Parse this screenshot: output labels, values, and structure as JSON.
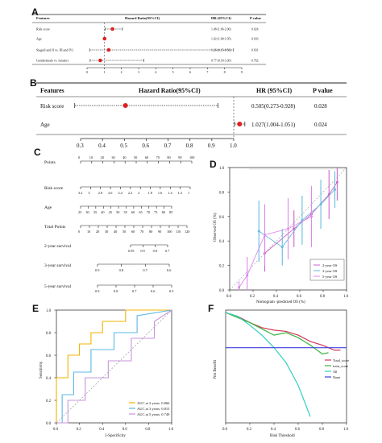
{
  "panels": {
    "A": {
      "label": "A",
      "headers": {
        "features": "Features",
        "hr": "Hazard Ratio(95%CI)",
        "hrci": "HR (95%CI)",
        "p": "P value"
      },
      "rows": [
        {
          "name": "Risk score",
          "hr": 1.48,
          "lo": 1.06,
          "hi": 2.06,
          "hr_text": "1.48 (1.06-2.06)",
          "p": "0.024"
        },
        {
          "name": "Age",
          "hr": 1.02,
          "lo": 1.0,
          "hi": 1.05,
          "hr_text": "1.02 (1.00-1.05)",
          "p": "0.033"
        },
        {
          "name": "Stage(I and II vs. III and IV)",
          "hr": 1.26,
          "lo": 0.15,
          "hi": 8.5,
          "hr_text": "1.26 (0.15-8.50)",
          "p": "0.831"
        },
        {
          "name": "Gender(male vs. female)",
          "hr": 0.77,
          "lo": 0.18,
          "hi": 3.3,
          "hr_text": "0.77 (0.18-3.30)",
          "p": "0.762"
        }
      ],
      "axis_ticks": [
        "0",
        "1",
        "2",
        "3",
        "4",
        "5",
        "6",
        "7",
        "8",
        "9"
      ]
    },
    "B": {
      "label": "B",
      "headers": {
        "features": "Features",
        "hr": "Hazard Ratio(95%CI)",
        "hrci": "HR (95%CI)",
        "p": "P value"
      },
      "rows": [
        {
          "name": "Risk score",
          "hr": 0.505,
          "lo": 0.273,
          "hi": 0.928,
          "hr_text": "0.505(0.273-0.928)",
          "p": "0.028"
        },
        {
          "name": "Age",
          "hr": 1.027,
          "lo": 1.004,
          "hi": 1.051,
          "hr_text": "1.027(1.004-1.051)",
          "p": "0.024"
        }
      ],
      "axis_ticks": [
        "0.3",
        "0.4",
        "0.5",
        "0.6",
        "0.7",
        "0.8",
        "0.9",
        "1.0"
      ]
    },
    "C": {
      "label": "C",
      "rows": [
        {
          "name": "Points",
          "ticks": [
            "0",
            "10",
            "20",
            "30",
            "40",
            "50",
            "60",
            "70",
            "80",
            "90",
            "100"
          ]
        },
        {
          "name": "Risk score",
          "ticks": [
            "3.2",
            "3",
            "2.8",
            "2.6",
            "2.4",
            "2.2",
            "2",
            "1.8",
            "1.6",
            "1.4",
            "1.2",
            "1"
          ]
        },
        {
          "name": "Age",
          "ticks": [
            "25",
            "30",
            "35",
            "40",
            "45",
            "50",
            "55",
            "60",
            "65",
            "70",
            "75",
            "80",
            "85"
          ]
        },
        {
          "name": "Total Points",
          "ticks": [
            "0",
            "10",
            "20",
            "30",
            "40",
            "50",
            "60",
            "70",
            "80",
            "90",
            "100",
            "110",
            "120"
          ]
        },
        {
          "name": "2-year survival",
          "ticks": [
            "0.95",
            "0.9",
            "0.8",
            "0.7"
          ]
        },
        {
          "name": "3-year survival",
          "ticks": [
            "0.9",
            "0.8",
            "0.7",
            "0.6"
          ]
        },
        {
          "name": "5-year survival",
          "ticks": [
            "0.9",
            "0.8",
            "0.7",
            "0.6",
            "0.5"
          ]
        }
      ]
    },
    "D": {
      "label": "D",
      "xlabel": "Nomogram -predicted OS (%)",
      "ylabel": "Observed OS (%)",
      "xticks": [
        "0.0",
        "0.2",
        "0.4",
        "0.6",
        "0.8",
        "1.0"
      ],
      "yticks": [
        "0.0",
        "0.2",
        "0.4",
        "0.6",
        "0.8",
        "1.0"
      ],
      "legend": [
        "2-year OS",
        "3-year OS",
        "5-year OS"
      ]
    },
    "E": {
      "label": "E",
      "xlabel": "1-Specificity",
      "ylabel": "Sensitivity",
      "ticks": [
        "0.0",
        "0.2",
        "0.4",
        "0.6",
        "0.8",
        "1.0"
      ],
      "legend": [
        "AUC at 2 years: 0.866",
        "AUC at 3 years: 0.815",
        "AUC at 5 years: 0.749"
      ]
    },
    "F": {
      "label": "F",
      "xlabel": "Risk Threshold",
      "ylabel": "Net Benefit",
      "xticks": [
        "0.0",
        "0.2",
        "0.4",
        "0.6",
        "0.8",
        "1.0"
      ],
      "legend": [
        "Total_score",
        "train_score",
        "All",
        "None"
      ]
    }
  },
  "chart_data": [
    {
      "type": "forest",
      "panel": "A",
      "xlim": [
        0,
        9
      ],
      "reference_line": 1,
      "series": [
        {
          "name": "",
          "categories": [
            "Risk score",
            "Age",
            "Stage(I and II vs. III and IV)",
            "Gender(male vs. female)"
          ],
          "hr": [
            1.48,
            1.02,
            1.26,
            0.77
          ],
          "lo": [
            1.06,
            1.0,
            0.15,
            0.18
          ],
          "hi": [
            2.06,
            1.05,
            8.5,
            3.3
          ]
        }
      ]
    },
    {
      "type": "forest",
      "panel": "B",
      "xlim": [
        0.3,
        1.05
      ],
      "reference_line": 1,
      "series": [
        {
          "name": "",
          "categories": [
            "Risk score",
            "Age"
          ],
          "hr": [
            0.505,
            1.027
          ],
          "lo": [
            0.273,
            1.004
          ],
          "hi": [
            0.928,
            1.051
          ]
        }
      ]
    },
    {
      "type": "line",
      "panel": "D",
      "xlim": [
        0,
        1
      ],
      "ylim": [
        0,
        1
      ],
      "series": [
        {
          "name": "2-year OS",
          "color": "#cc66cc",
          "x": [
            0.3,
            0.55,
            0.7,
            0.85,
            0.92
          ],
          "y": [
            0.3,
            0.5,
            0.62,
            0.78,
            0.88
          ],
          "err": [
            0.15,
            0.15,
            0.18,
            0.2,
            0.15
          ]
        },
        {
          "name": "3-year OS",
          "color": "#66bbdd",
          "x": [
            0.25,
            0.45,
            0.62,
            0.78,
            0.9
          ],
          "y": [
            0.48,
            0.35,
            0.57,
            0.7,
            0.82
          ],
          "err": [
            0.25,
            0.15,
            0.2,
            0.2,
            0.15
          ]
        },
        {
          "name": "5-year OS",
          "color": "#dd88ee",
          "x": [
            0.08,
            0.15,
            0.3,
            0.5,
            0.7
          ],
          "y": [
            0.02,
            0.12,
            0.45,
            0.5,
            0.6
          ],
          "err": [
            0.05,
            0.15,
            0.25,
            0.25,
            0.25
          ]
        }
      ]
    },
    {
      "type": "line",
      "panel": "E",
      "xlim": [
        0,
        1
      ],
      "ylim": [
        0,
        1
      ],
      "series": [
        {
          "name": "AUC at 2 years: 0.866",
          "color": "#f0b400",
          "x": [
            0,
            0,
            0.1,
            0.1,
            0.2,
            0.2,
            0.3,
            0.3,
            0.4,
            0.4,
            0.6,
            0.6,
            0.8,
            1.0
          ],
          "y": [
            0,
            0.4,
            0.4,
            0.6,
            0.6,
            0.7,
            0.7,
            0.8,
            0.8,
            0.9,
            0.9,
            1.0,
            1.0,
            1.0
          ]
        },
        {
          "name": "AUC at 3 years: 0.815",
          "color": "#5bb8e6",
          "x": [
            0,
            0.05,
            0.05,
            0.15,
            0.15,
            0.3,
            0.3,
            0.5,
            0.5,
            0.7,
            0.7,
            1.0
          ],
          "y": [
            0,
            0,
            0.25,
            0.25,
            0.45,
            0.45,
            0.65,
            0.65,
            0.8,
            0.8,
            0.95,
            1.0
          ]
        },
        {
          "name": "AUC at 5 years: 0.749",
          "color": "#c896dc",
          "x": [
            0,
            0.1,
            0.1,
            0.25,
            0.25,
            0.45,
            0.45,
            0.65,
            0.65,
            0.85,
            0.85,
            1.0
          ],
          "y": [
            0,
            0,
            0.2,
            0.2,
            0.4,
            0.4,
            0.55,
            0.55,
            0.75,
            0.75,
            0.9,
            1.0
          ]
        },
        {
          "name": "",
          "color": "#999999",
          "x": [
            0,
            1
          ],
          "y": [
            0,
            1
          ]
        }
      ]
    },
    {
      "type": "line",
      "panel": "F",
      "xlim": [
        0,
        1
      ],
      "ylim": [
        -0.6,
        0.3
      ],
      "series": [
        {
          "name": "Total_score",
          "color": "#d03a5a",
          "x": [
            0,
            0.1,
            0.2,
            0.3,
            0.4,
            0.5,
            0.6,
            0.7,
            0.8,
            0.9,
            0.95
          ],
          "y": [
            0.28,
            0.25,
            0.2,
            0.16,
            0.14,
            0.13,
            0.1,
            0.05,
            0.02,
            -0.02,
            -0.02
          ]
        },
        {
          "name": "train_score",
          "color": "#3cb43c",
          "x": [
            0,
            0.1,
            0.2,
            0.3,
            0.4,
            0.5,
            0.6,
            0.7,
            0.8,
            0.85
          ],
          "y": [
            0.28,
            0.24,
            0.2,
            0.15,
            0.1,
            0.12,
            0.08,
            0.02,
            -0.05,
            -0.04
          ]
        },
        {
          "name": "All",
          "color": "#30d0c0",
          "x": [
            0,
            0.1,
            0.2,
            0.3,
            0.4,
            0.5,
            0.6,
            0.7
          ],
          "y": [
            0.28,
            0.25,
            0.18,
            0.1,
            0.0,
            -0.12,
            -0.3,
            -0.55
          ]
        },
        {
          "name": "None",
          "color": "#3f3fdd",
          "x": [
            0,
            1
          ],
          "y": [
            0,
            0
          ]
        }
      ]
    }
  ]
}
